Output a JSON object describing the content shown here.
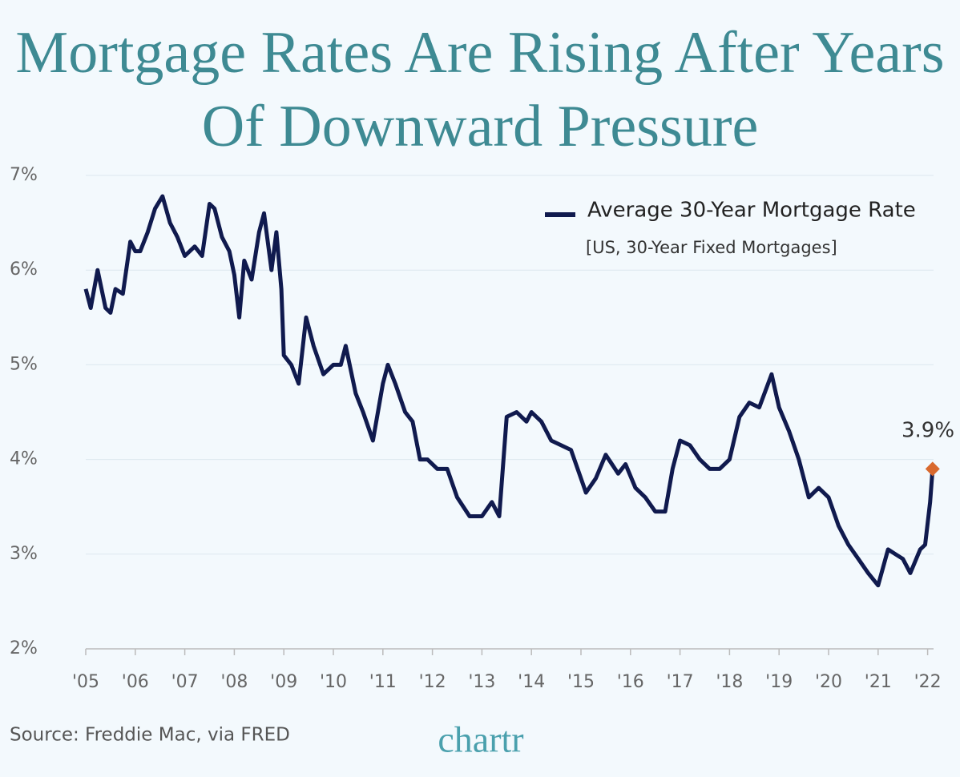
{
  "chart_data": {
    "type": "line",
    "title": "Mortgage Rates Are Rising After Years Of Downward Pressure",
    "subtitle": "[US, 30-Year Fixed Mortgages]",
    "source": "Source: Freddie Mac, via FRED",
    "brand": "chartr",
    "x": [
      2005.0,
      2005.1,
      2005.24,
      2005.4,
      2005.5,
      2005.6,
      2005.75,
      2005.9,
      2006.0,
      2006.1,
      2006.25,
      2006.4,
      2006.55,
      2006.7,
      2006.85,
      2007.0,
      2007.2,
      2007.35,
      2007.5,
      2007.6,
      2007.75,
      2007.9,
      2008.0,
      2008.1,
      2008.2,
      2008.35,
      2008.5,
      2008.6,
      2008.75,
      2008.85,
      2008.95,
      2009.0,
      2009.15,
      2009.3,
      2009.45,
      2009.6,
      2009.8,
      2010.0,
      2010.15,
      2010.25,
      2010.45,
      2010.6,
      2010.8,
      2011.0,
      2011.1,
      2011.25,
      2011.45,
      2011.6,
      2011.75,
      2011.9,
      2012.1,
      2012.3,
      2012.5,
      2012.75,
      2013.0,
      2013.2,
      2013.35,
      2013.5,
      2013.7,
      2013.9,
      2014.0,
      2014.2,
      2014.4,
      2014.6,
      2014.8,
      2015.0,
      2015.1,
      2015.3,
      2015.5,
      2015.75,
      2015.9,
      2016.1,
      2016.3,
      2016.5,
      2016.7,
      2016.85,
      2017.0,
      2017.2,
      2017.4,
      2017.6,
      2017.8,
      2018.0,
      2018.2,
      2018.4,
      2018.6,
      2018.85,
      2019.0,
      2019.2,
      2019.4,
      2019.6,
      2019.8,
      2020.0,
      2020.2,
      2020.4,
      2020.6,
      2020.8,
      2021.0,
      2021.2,
      2021.35,
      2021.5,
      2021.65,
      2021.85,
      2021.95,
      2022.05,
      2022.1
    ],
    "series": [
      {
        "name": "Average 30-Year Mortgage Rate",
        "color": "#101a4e",
        "values": [
          5.8,
          5.6,
          6.0,
          5.6,
          5.55,
          5.8,
          5.75,
          6.3,
          6.2,
          6.2,
          6.4,
          6.65,
          6.78,
          6.5,
          6.35,
          6.15,
          6.25,
          6.15,
          6.7,
          6.65,
          6.35,
          6.2,
          5.95,
          5.5,
          6.1,
          5.9,
          6.4,
          6.6,
          6.0,
          6.4,
          5.8,
          5.1,
          5.0,
          4.8,
          5.5,
          5.2,
          4.9,
          5.0,
          5.0,
          5.2,
          4.7,
          4.5,
          4.2,
          4.8,
          5.0,
          4.8,
          4.5,
          4.4,
          4.0,
          4.0,
          3.9,
          3.9,
          3.6,
          3.4,
          3.4,
          3.55,
          3.4,
          4.45,
          4.5,
          4.4,
          4.5,
          4.4,
          4.2,
          4.15,
          4.1,
          3.8,
          3.65,
          3.8,
          4.05,
          3.85,
          3.95,
          3.7,
          3.6,
          3.45,
          3.45,
          3.9,
          4.2,
          4.15,
          4.0,
          3.9,
          3.9,
          4.0,
          4.45,
          4.6,
          4.55,
          4.9,
          4.55,
          4.3,
          4.0,
          3.6,
          3.7,
          3.6,
          3.3,
          3.1,
          2.95,
          2.8,
          2.67,
          3.05,
          3.0,
          2.95,
          2.8,
          3.05,
          3.1,
          3.55,
          3.9
        ]
      }
    ],
    "annotation": {
      "text": "3.9%",
      "x": 2022.1,
      "y": 3.9,
      "color": "#d9692e"
    },
    "xlim": [
      2005,
      2022.15
    ],
    "xticks": [
      {
        "value": 2005,
        "label": "'05"
      },
      {
        "value": 2006,
        "label": "'06"
      },
      {
        "value": 2007,
        "label": "'07"
      },
      {
        "value": 2008,
        "label": "'08"
      },
      {
        "value": 2009,
        "label": "'09"
      },
      {
        "value": 2010,
        "label": "'10"
      },
      {
        "value": 2011,
        "label": "'11"
      },
      {
        "value": 2012,
        "label": "'12"
      },
      {
        "value": 2013,
        "label": "'13"
      },
      {
        "value": 2014,
        "label": "'14"
      },
      {
        "value": 2015,
        "label": "'15"
      },
      {
        "value": 2016,
        "label": "'16"
      },
      {
        "value": 2017,
        "label": "'17"
      },
      {
        "value": 2018,
        "label": "'18"
      },
      {
        "value": 2019,
        "label": "'19"
      },
      {
        "value": 2020,
        "label": "'20"
      },
      {
        "value": 2021,
        "label": "'21"
      },
      {
        "value": 2022,
        "label": "'22"
      }
    ],
    "ylim": [
      2,
      7
    ],
    "yticks": [
      {
        "value": 2,
        "label": "2%"
      },
      {
        "value": 3,
        "label": "3%"
      },
      {
        "value": 4,
        "label": "4%"
      },
      {
        "value": 5,
        "label": "5%"
      },
      {
        "value": 6,
        "label": "6%"
      },
      {
        "value": 7,
        "label": "7%"
      }
    ],
    "grid": true
  }
}
